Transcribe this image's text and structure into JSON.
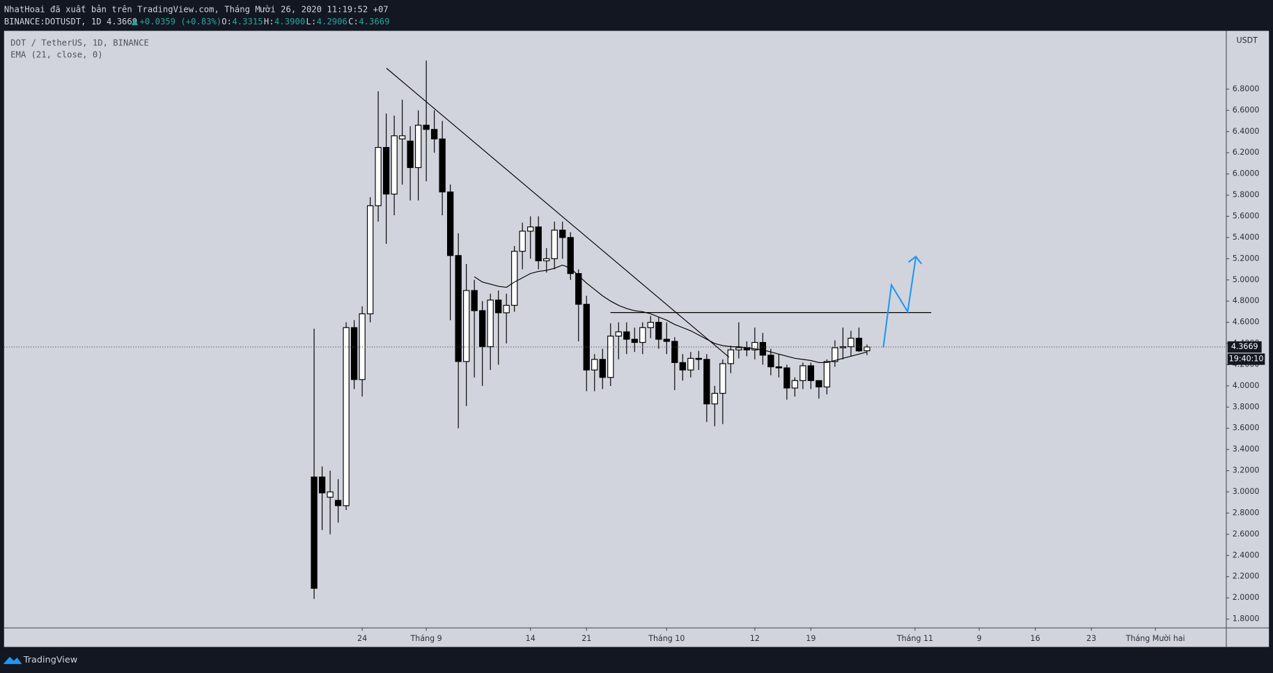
{
  "header": {
    "title": "NhatHoai đã xuất bản trên TradingView.com, Tháng Mười 26, 2020 11:19:52 +07",
    "symbol": "BINANCE:DOTUSDT, 1D 4.3669",
    "change": "+0.0359 (+0.83%)",
    "ohlc": [
      {
        "label": "O:",
        "value": "4.3315"
      },
      {
        "label": "H:",
        "value": "4.3900"
      },
      {
        "label": "L:",
        "value": "4.2906"
      },
      {
        "label": "C:",
        "value": "4.3669"
      }
    ]
  },
  "footer": {
    "brand": "TradingView"
  },
  "chart_data": {
    "type": "candlestick",
    "legend": "DOT / TetherUS, 1D, BINANCE",
    "axis_unit": "USDT",
    "up_color": "#ffffff",
    "down_color": "#000000",
    "grid": false,
    "x": [
      "2020-08-18",
      "2020-08-19",
      "2020-08-20",
      "2020-08-21",
      "2020-08-22",
      "2020-08-23",
      "2020-08-24",
      "2020-08-25",
      "2020-08-26",
      "2020-08-27",
      "2020-08-28",
      "2020-08-29",
      "2020-08-30",
      "2020-08-31",
      "2020-09-01",
      "2020-09-02",
      "2020-09-03",
      "2020-09-04",
      "2020-09-05",
      "2020-09-06",
      "2020-09-07",
      "2020-09-08",
      "2020-09-09",
      "2020-09-10",
      "2020-09-11",
      "2020-09-12",
      "2020-09-13",
      "2020-09-14",
      "2020-09-15",
      "2020-09-16",
      "2020-09-17",
      "2020-09-18",
      "2020-09-19",
      "2020-09-20",
      "2020-09-21",
      "2020-09-22",
      "2020-09-23",
      "2020-09-24",
      "2020-09-25",
      "2020-09-26",
      "2020-09-27",
      "2020-09-28",
      "2020-09-29",
      "2020-09-30",
      "2020-10-01",
      "2020-10-02",
      "2020-10-03",
      "2020-10-04",
      "2020-10-05",
      "2020-10-06",
      "2020-10-07",
      "2020-10-08",
      "2020-10-09",
      "2020-10-10",
      "2020-10-11",
      "2020-10-12",
      "2020-10-13",
      "2020-10-14",
      "2020-10-15",
      "2020-10-16",
      "2020-10-17",
      "2020-10-18",
      "2020-10-19",
      "2020-10-20",
      "2020-10-21",
      "2020-10-22",
      "2020-10-23",
      "2020-10-24",
      "2020-10-25",
      "2020-10-26"
    ],
    "open": [
      3.14,
      3.14,
      2.95,
      2.92,
      2.87,
      4.55,
      4.06,
      4.68,
      5.7,
      6.25,
      5.81,
      6.33,
      6.31,
      6.06,
      6.46,
      6.42,
      6.33,
      5.83,
      5.23,
      4.23,
      4.9,
      4.71,
      4.37,
      4.81,
      4.69,
      4.76,
      5.27,
      5.46,
      5.5,
      5.18,
      5.2,
      5.47,
      5.4,
      5.06,
      4.77,
      4.15,
      4.25,
      4.08,
      4.47,
      4.51,
      4.44,
      4.41,
      4.55,
      4.6,
      4.44,
      4.42,
      4.22,
      4.15,
      4.26,
      4.25,
      3.83,
      3.93,
      4.21,
      4.34,
      4.36,
      4.34,
      4.41,
      4.29,
      4.18,
      4.17,
      3.98,
      4.05,
      4.19,
      4.05,
      3.99,
      4.23,
      4.36,
      4.37,
      4.45,
      4.3315
    ],
    "high": [
      4.54,
      3.24,
      3.2,
      3.12,
      4.6,
      4.62,
      4.75,
      5.78,
      6.78,
      6.57,
      6.55,
      6.7,
      6.45,
      6.6,
      7.07,
      6.6,
      6.5,
      5.9,
      5.44,
      5.15,
      5.0,
      4.8,
      4.87,
      4.9,
      4.87,
      5.32,
      5.54,
      5.6,
      5.6,
      5.3,
      5.55,
      5.55,
      5.45,
      5.1,
      4.85,
      4.3,
      4.35,
      4.59,
      4.6,
      4.6,
      4.55,
      4.6,
      4.66,
      4.65,
      4.6,
      4.46,
      4.3,
      4.32,
      4.33,
      4.3,
      4.0,
      4.25,
      4.38,
      4.6,
      4.42,
      4.55,
      4.5,
      4.35,
      4.3,
      4.2,
      4.08,
      4.22,
      4.22,
      4.05,
      4.25,
      4.43,
      4.55,
      4.52,
      4.55,
      4.39
    ],
    "low": [
      1.99,
      2.64,
      2.6,
      2.71,
      2.83,
      3.97,
      3.9,
      4.6,
      5.55,
      5.34,
      5.61,
      5.9,
      5.75,
      5.75,
      5.93,
      6.2,
      5.61,
      4.62,
      3.6,
      3.81,
      4.08,
      4.0,
      4.15,
      4.2,
      4.4,
      4.7,
      5.1,
      5.2,
      5.1,
      5.07,
      5.1,
      5.2,
      5.0,
      4.42,
      3.95,
      3.95,
      3.97,
      4.0,
      4.25,
      4.3,
      4.32,
      4.3,
      4.45,
      4.35,
      4.3,
      3.96,
      4.05,
      4.08,
      4.15,
      3.66,
      3.62,
      3.64,
      4.12,
      4.26,
      4.28,
      4.25,
      4.2,
      4.1,
      4.08,
      3.87,
      3.9,
      3.97,
      3.97,
      3.88,
      3.92,
      4.18,
      4.25,
      4.28,
      4.32,
      4.2906
    ],
    "close": [
      2.09,
      2.99,
      3.0,
      2.87,
      4.55,
      4.06,
      4.68,
      5.7,
      6.25,
      5.81,
      6.36,
      6.36,
      6.06,
      6.46,
      6.42,
      6.33,
      5.83,
      5.23,
      4.23,
      4.9,
      4.71,
      4.37,
      4.81,
      4.69,
      4.76,
      5.27,
      5.46,
      5.5,
      5.18,
      5.2,
      5.47,
      5.4,
      5.06,
      4.77,
      4.15,
      4.25,
      4.08,
      4.47,
      4.51,
      4.44,
      4.41,
      4.55,
      4.6,
      4.44,
      4.42,
      4.22,
      4.15,
      4.26,
      4.25,
      3.83,
      3.93,
      4.21,
      4.34,
      4.36,
      4.34,
      4.41,
      4.29,
      4.18,
      4.17,
      3.98,
      4.05,
      4.19,
      4.05,
      3.99,
      4.23,
      4.36,
      4.37,
      4.45,
      4.33,
      4.3669
    ],
    "ema": {
      "name": "EMA (21, close, 0)",
      "color": "#000000",
      "values": [
        null,
        null,
        null,
        null,
        null,
        null,
        null,
        null,
        null,
        null,
        null,
        null,
        null,
        null,
        null,
        null,
        null,
        null,
        null,
        null,
        5.03,
        4.98,
        4.96,
        4.94,
        4.93,
        4.98,
        5.02,
        5.06,
        5.08,
        5.09,
        5.11,
        5.14,
        5.11,
        5.04,
        4.97,
        4.91,
        4.85,
        4.8,
        4.76,
        4.73,
        4.71,
        4.7,
        4.68,
        4.65,
        4.62,
        4.58,
        4.55,
        4.52,
        4.48,
        4.44,
        4.4,
        4.38,
        4.37,
        4.37,
        4.36,
        4.35,
        4.34,
        4.32,
        4.3,
        4.28,
        4.26,
        4.25,
        4.24,
        4.22,
        4.22,
        4.24,
        4.26,
        4.28,
        4.3,
        4.32
      ]
    },
    "last_price": {
      "value": 4.3669,
      "label": "4.3669"
    },
    "countdown": "19:40:10",
    "xlim": [
      "2020-07-10",
      "2020-12-10"
    ],
    "xticks": [
      {
        "value": "2020-08-24",
        "label": "24"
      },
      {
        "value": "2020-09-01",
        "label": "Tháng 9"
      },
      {
        "value": "2020-09-14",
        "label": "14"
      },
      {
        "value": "2020-09-21",
        "label": "21"
      },
      {
        "value": "2020-10-01",
        "label": "Tháng 10"
      },
      {
        "value": "2020-10-12",
        "label": "12"
      },
      {
        "value": "2020-10-19",
        "label": "19"
      },
      {
        "value": "2020-11-01",
        "label": "Tháng 11"
      },
      {
        "value": "2020-11-09",
        "label": "9"
      },
      {
        "value": "2020-11-16",
        "label": "16"
      },
      {
        "value": "2020-11-23",
        "label": "23"
      },
      {
        "value": "2020-12-01",
        "label": "Tháng Mười hai"
      }
    ],
    "ylim": [
      1.72,
      7.35
    ],
    "yticks": [
      {
        "value": 1.8,
        "label": "1.8000"
      },
      {
        "value": 2.0,
        "label": "2.0000"
      },
      {
        "value": 2.2,
        "label": "2.2000"
      },
      {
        "value": 2.4,
        "label": "2.4000"
      },
      {
        "value": 2.6,
        "label": "2.6000"
      },
      {
        "value": 2.8,
        "label": "2.8000"
      },
      {
        "value": 3.0,
        "label": "3.0000"
      },
      {
        "value": 3.2,
        "label": "3.2000"
      },
      {
        "value": 3.4,
        "label": "3.4000"
      },
      {
        "value": 3.6,
        "label": "3.6000"
      },
      {
        "value": 3.8,
        "label": "3.8000"
      },
      {
        "value": 4.0,
        "label": "4.0000"
      },
      {
        "value": 4.2,
        "label": "4.2000"
      },
      {
        "value": 4.4,
        "label": "4.4000"
      },
      {
        "value": 4.6,
        "label": "4.6000"
      },
      {
        "value": 4.8,
        "label": "4.8000"
      },
      {
        "value": 5.0,
        "label": "5.0000"
      },
      {
        "value": 5.2,
        "label": "5.2000"
      },
      {
        "value": 5.4,
        "label": "5.4000"
      },
      {
        "value": 5.6,
        "label": "5.6000"
      },
      {
        "value": 5.8,
        "label": "5.8000"
      },
      {
        "value": 6.0,
        "label": "6.0000"
      },
      {
        "value": 6.2,
        "label": "6.2000"
      },
      {
        "value": 6.4,
        "label": "6.4000"
      },
      {
        "value": 6.6,
        "label": "6.6000"
      },
      {
        "value": 6.8,
        "label": "6.8000"
      }
    ]
  }
}
